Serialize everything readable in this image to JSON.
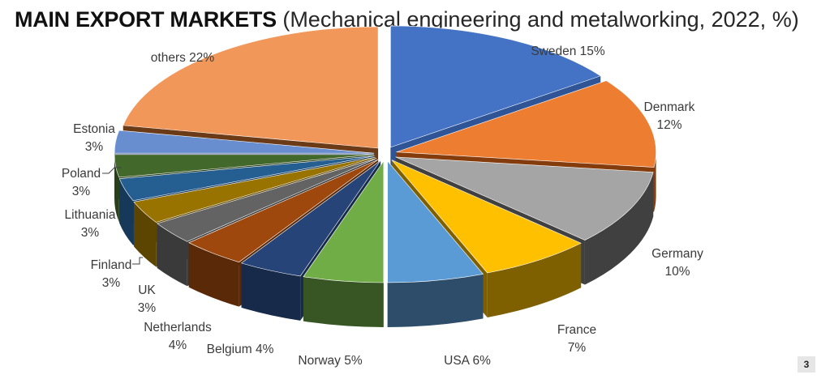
{
  "header": {
    "title_bold": "MAIN EXPORT MARKETS",
    "title_rest": "(Mechanical engineering and metalworking, 2022, %)"
  },
  "page_number": "3",
  "chart_data": {
    "type": "pie",
    "title": "MAIN EXPORT MARKETS",
    "subtitle": "(Mechanical engineering and metalworking, 2022, %)",
    "unit": "%",
    "exploded": true,
    "three_d": true,
    "slices": [
      {
        "label": "Sweden",
        "value": 15,
        "text": "15%",
        "color": "#4472C4",
        "side": "#2F5597"
      },
      {
        "label": "Denmark",
        "value": 12,
        "text": "12%",
        "color": "#ED7D31",
        "side": "#843C0C"
      },
      {
        "label": "Germany",
        "value": 10,
        "text": "10%",
        "color": "#A5A5A5",
        "side": "#404040"
      },
      {
        "label": "France",
        "value": 7,
        "text": "7%",
        "color": "#FFC000",
        "side": "#7F6000"
      },
      {
        "label": "USA",
        "value": 6,
        "text": "6%",
        "color": "#5B9BD5",
        "side": "#2E4D6B"
      },
      {
        "label": "Norway",
        "value": 5,
        "text": "5%",
        "color": "#70AD47",
        "side": "#375623"
      },
      {
        "label": "Belgium",
        "value": 4,
        "text": "4%",
        "color": "#264478",
        "side": "#172A4A"
      },
      {
        "label": "Netherlands",
        "value": 4,
        "text": "4%",
        "color": "#9E480E",
        "side": "#5A2908"
      },
      {
        "label": "UK",
        "value": 3,
        "text": "3%",
        "color": "#636363",
        "side": "#3A3A3A"
      },
      {
        "label": "Finland",
        "value": 3,
        "text": "3%",
        "color": "#997300",
        "side": "#5C4500"
      },
      {
        "label": "Lithuania",
        "value": 3,
        "text": "3%",
        "color": "#255E91",
        "side": "#16395A"
      },
      {
        "label": "Poland",
        "value": 3,
        "text": "3%",
        "color": "#43682B",
        "side": "#283F1A"
      },
      {
        "label": "Estonia",
        "value": 3,
        "text": "3%",
        "color": "#698ED0",
        "side": "#3F5A8C"
      },
      {
        "label": "others",
        "value": 22,
        "text": "22%",
        "color": "#F1975A",
        "side": "#6B3A17"
      }
    ]
  }
}
